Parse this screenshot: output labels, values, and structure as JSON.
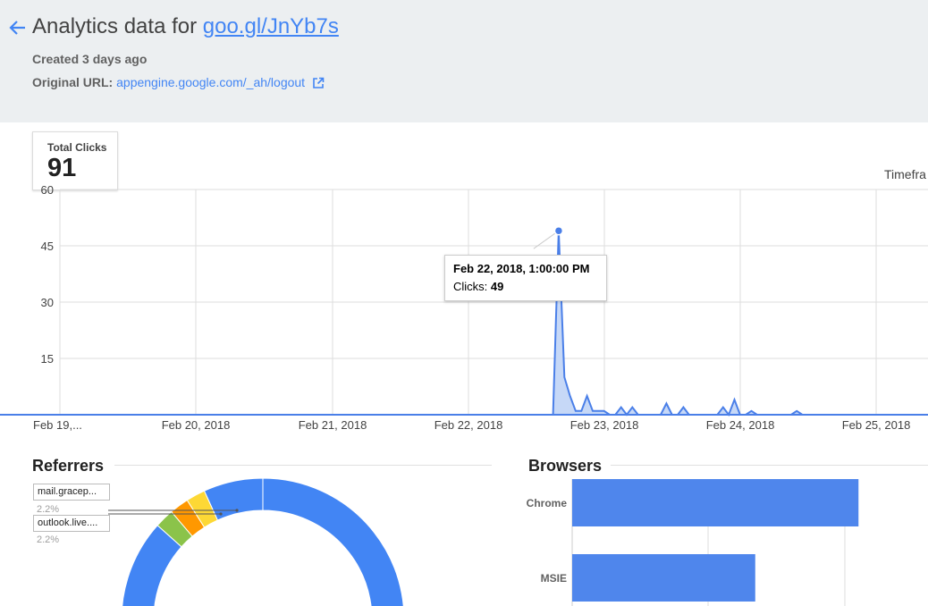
{
  "header": {
    "title_prefix": "Analytics data for",
    "short_url": "goo.gl/JnYb7s",
    "created": "Created 3 days ago",
    "original_label": "Original URL:",
    "original_url": "appengine.google.com/_ah/logout"
  },
  "total_clicks": {
    "label": "Total Clicks",
    "value": "91"
  },
  "timeframe_label": "Timefra",
  "tooltip": {
    "date": "Feb 22, 2018, 1:00:00 PM",
    "label": "Clicks:",
    "value": "49"
  },
  "sections": {
    "referrers": "Referrers",
    "browsers": "Browsers"
  },
  "referrer_labels": [
    {
      "name": "mail.gracep...",
      "pct": "2.2%"
    },
    {
      "name": "outlook.live....",
      "pct": "2.2%"
    }
  ],
  "colors": {
    "accent": "#4285f4",
    "header_bg": "#eceff1"
  },
  "chart_data": [
    {
      "type": "area",
      "ylim": [
        0,
        60
      ],
      "yticks": [
        "15",
        "30",
        "45",
        "60"
      ],
      "xticks": [
        "Feb 19,...",
        "Feb 20, 2018",
        "Feb 21, 2018",
        "Feb 22, 2018",
        "Feb 23, 2018",
        "Feb 24, 2018",
        "Feb 25, 2018"
      ],
      "xrange_hours": [
        0,
        156
      ],
      "points": [
        [
          0,
          0
        ],
        [
          87,
          0
        ],
        [
          88,
          49
        ],
        [
          89,
          10
        ],
        [
          90,
          5
        ],
        [
          91,
          1
        ],
        [
          92,
          1
        ],
        [
          93,
          5
        ],
        [
          94,
          1
        ],
        [
          95,
          1
        ],
        [
          96,
          1
        ],
        [
          97,
          0
        ],
        [
          98,
          0
        ],
        [
          99,
          2
        ],
        [
          100,
          0
        ],
        [
          101,
          2
        ],
        [
          102,
          0
        ],
        [
          103,
          0
        ],
        [
          104,
          0
        ],
        [
          105,
          0
        ],
        [
          106,
          0
        ],
        [
          107,
          3
        ],
        [
          108,
          0
        ],
        [
          109,
          0
        ],
        [
          110,
          2
        ],
        [
          111,
          0
        ],
        [
          112,
          0
        ],
        [
          113,
          0
        ],
        [
          114,
          0
        ],
        [
          115,
          0
        ],
        [
          116,
          0
        ],
        [
          117,
          2
        ],
        [
          118,
          0
        ],
        [
          119,
          4
        ],
        [
          120,
          0
        ],
        [
          121,
          0
        ],
        [
          122,
          1
        ],
        [
          123,
          0
        ],
        [
          124,
          0
        ],
        [
          125,
          0
        ],
        [
          126,
          0
        ],
        [
          127,
          0
        ],
        [
          128,
          0
        ],
        [
          129,
          0
        ],
        [
          130,
          1
        ],
        [
          131,
          0
        ],
        [
          156,
          0
        ]
      ],
      "highlight": {
        "x": 88,
        "y": 49
      },
      "series": [
        {
          "name": "Clicks"
        }
      ]
    },
    {
      "type": "pie",
      "title": "Referrers",
      "slices": [
        {
          "value": 86.6,
          "color": "#4285f4"
        },
        {
          "value": 2.2,
          "color": "#8bc34a"
        },
        {
          "value": 2.2,
          "color": "#ff9800"
        },
        {
          "value": 2.2,
          "color": "#fdd835"
        },
        {
          "value": 6.8,
          "color": "#4285f4"
        }
      ],
      "donut": true
    },
    {
      "type": "bar",
      "title": "Browsers",
      "categories": [
        "Chrome",
        "MSIE"
      ],
      "values": [
        61,
        39
      ],
      "xlim": [
        0,
        100
      ]
    }
  ]
}
